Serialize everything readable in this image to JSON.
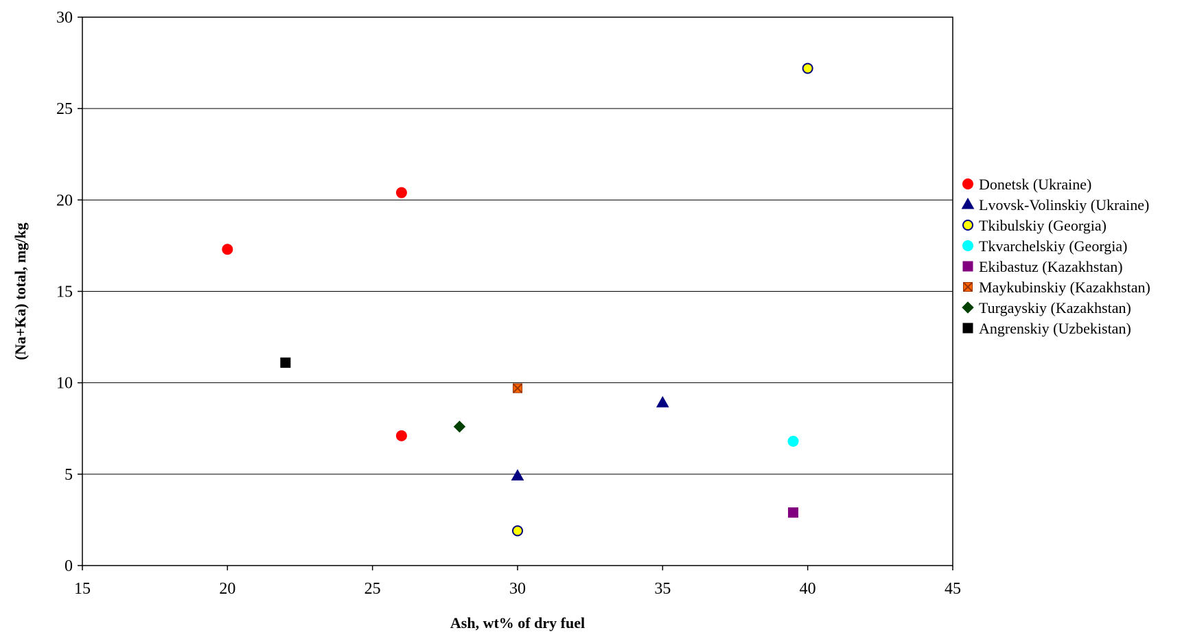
{
  "chart_data": {
    "type": "scatter",
    "xlabel": "Ash, wt% of dry fuel",
    "ylabel": "(Na+Ka) total, mg/kg",
    "xlim": [
      15,
      45
    ],
    "ylim": [
      0,
      30
    ],
    "xticks": [
      15,
      20,
      25,
      30,
      35,
      40,
      45
    ],
    "yticks": [
      0,
      5,
      10,
      15,
      20,
      25,
      30
    ],
    "grid": "horizontal",
    "legend_position": "right",
    "series": [
      {
        "name": "Donetsk (Ukraine)",
        "marker": "circle",
        "fill": "#ff0000",
        "stroke": "#ff0000",
        "points": [
          {
            "x": 20,
            "y": 17.3
          },
          {
            "x": 26,
            "y": 20.4
          },
          {
            "x": 26,
            "y": 7.1
          }
        ]
      },
      {
        "name": "Lvovsk-Volinskiy (Ukraine)",
        "marker": "triangle",
        "fill": "#000080",
        "stroke": "#000080",
        "points": [
          {
            "x": 30,
            "y": 4.9
          },
          {
            "x": 35,
            "y": 8.9
          }
        ]
      },
      {
        "name": "Tkibulskiy (Georgia)",
        "marker": "circle-outline",
        "fill": "#ffff00",
        "stroke": "#000080",
        "points": [
          {
            "x": 30,
            "y": 1.9
          },
          {
            "x": 40,
            "y": 27.2
          }
        ]
      },
      {
        "name": "Tkvarchelskiy (Georgia)",
        "marker": "circle",
        "fill": "#00ffff",
        "stroke": "#00ffff",
        "points": [
          {
            "x": 39.5,
            "y": 6.8
          }
        ]
      },
      {
        "name": "Ekibastuz (Kazakhstan)",
        "marker": "square",
        "fill": "#800080",
        "stroke": "#800080",
        "points": [
          {
            "x": 39.5,
            "y": 2.9
          }
        ]
      },
      {
        "name": "Maykubinskiy (Kazakhstan)",
        "marker": "square-x",
        "fill": "#ff6600",
        "stroke": "#993300",
        "points": [
          {
            "x": 30,
            "y": 9.7
          }
        ]
      },
      {
        "name": "Turgayskiy (Kazakhstan)",
        "marker": "diamond",
        "fill": "#004000",
        "stroke": "#004000",
        "points": [
          {
            "x": 28,
            "y": 7.6
          }
        ]
      },
      {
        "name": "Angrenskiy (Uzbekistan)",
        "marker": "square",
        "fill": "#000000",
        "stroke": "#000000",
        "points": [
          {
            "x": 22,
            "y": 11.1
          }
        ]
      }
    ]
  }
}
